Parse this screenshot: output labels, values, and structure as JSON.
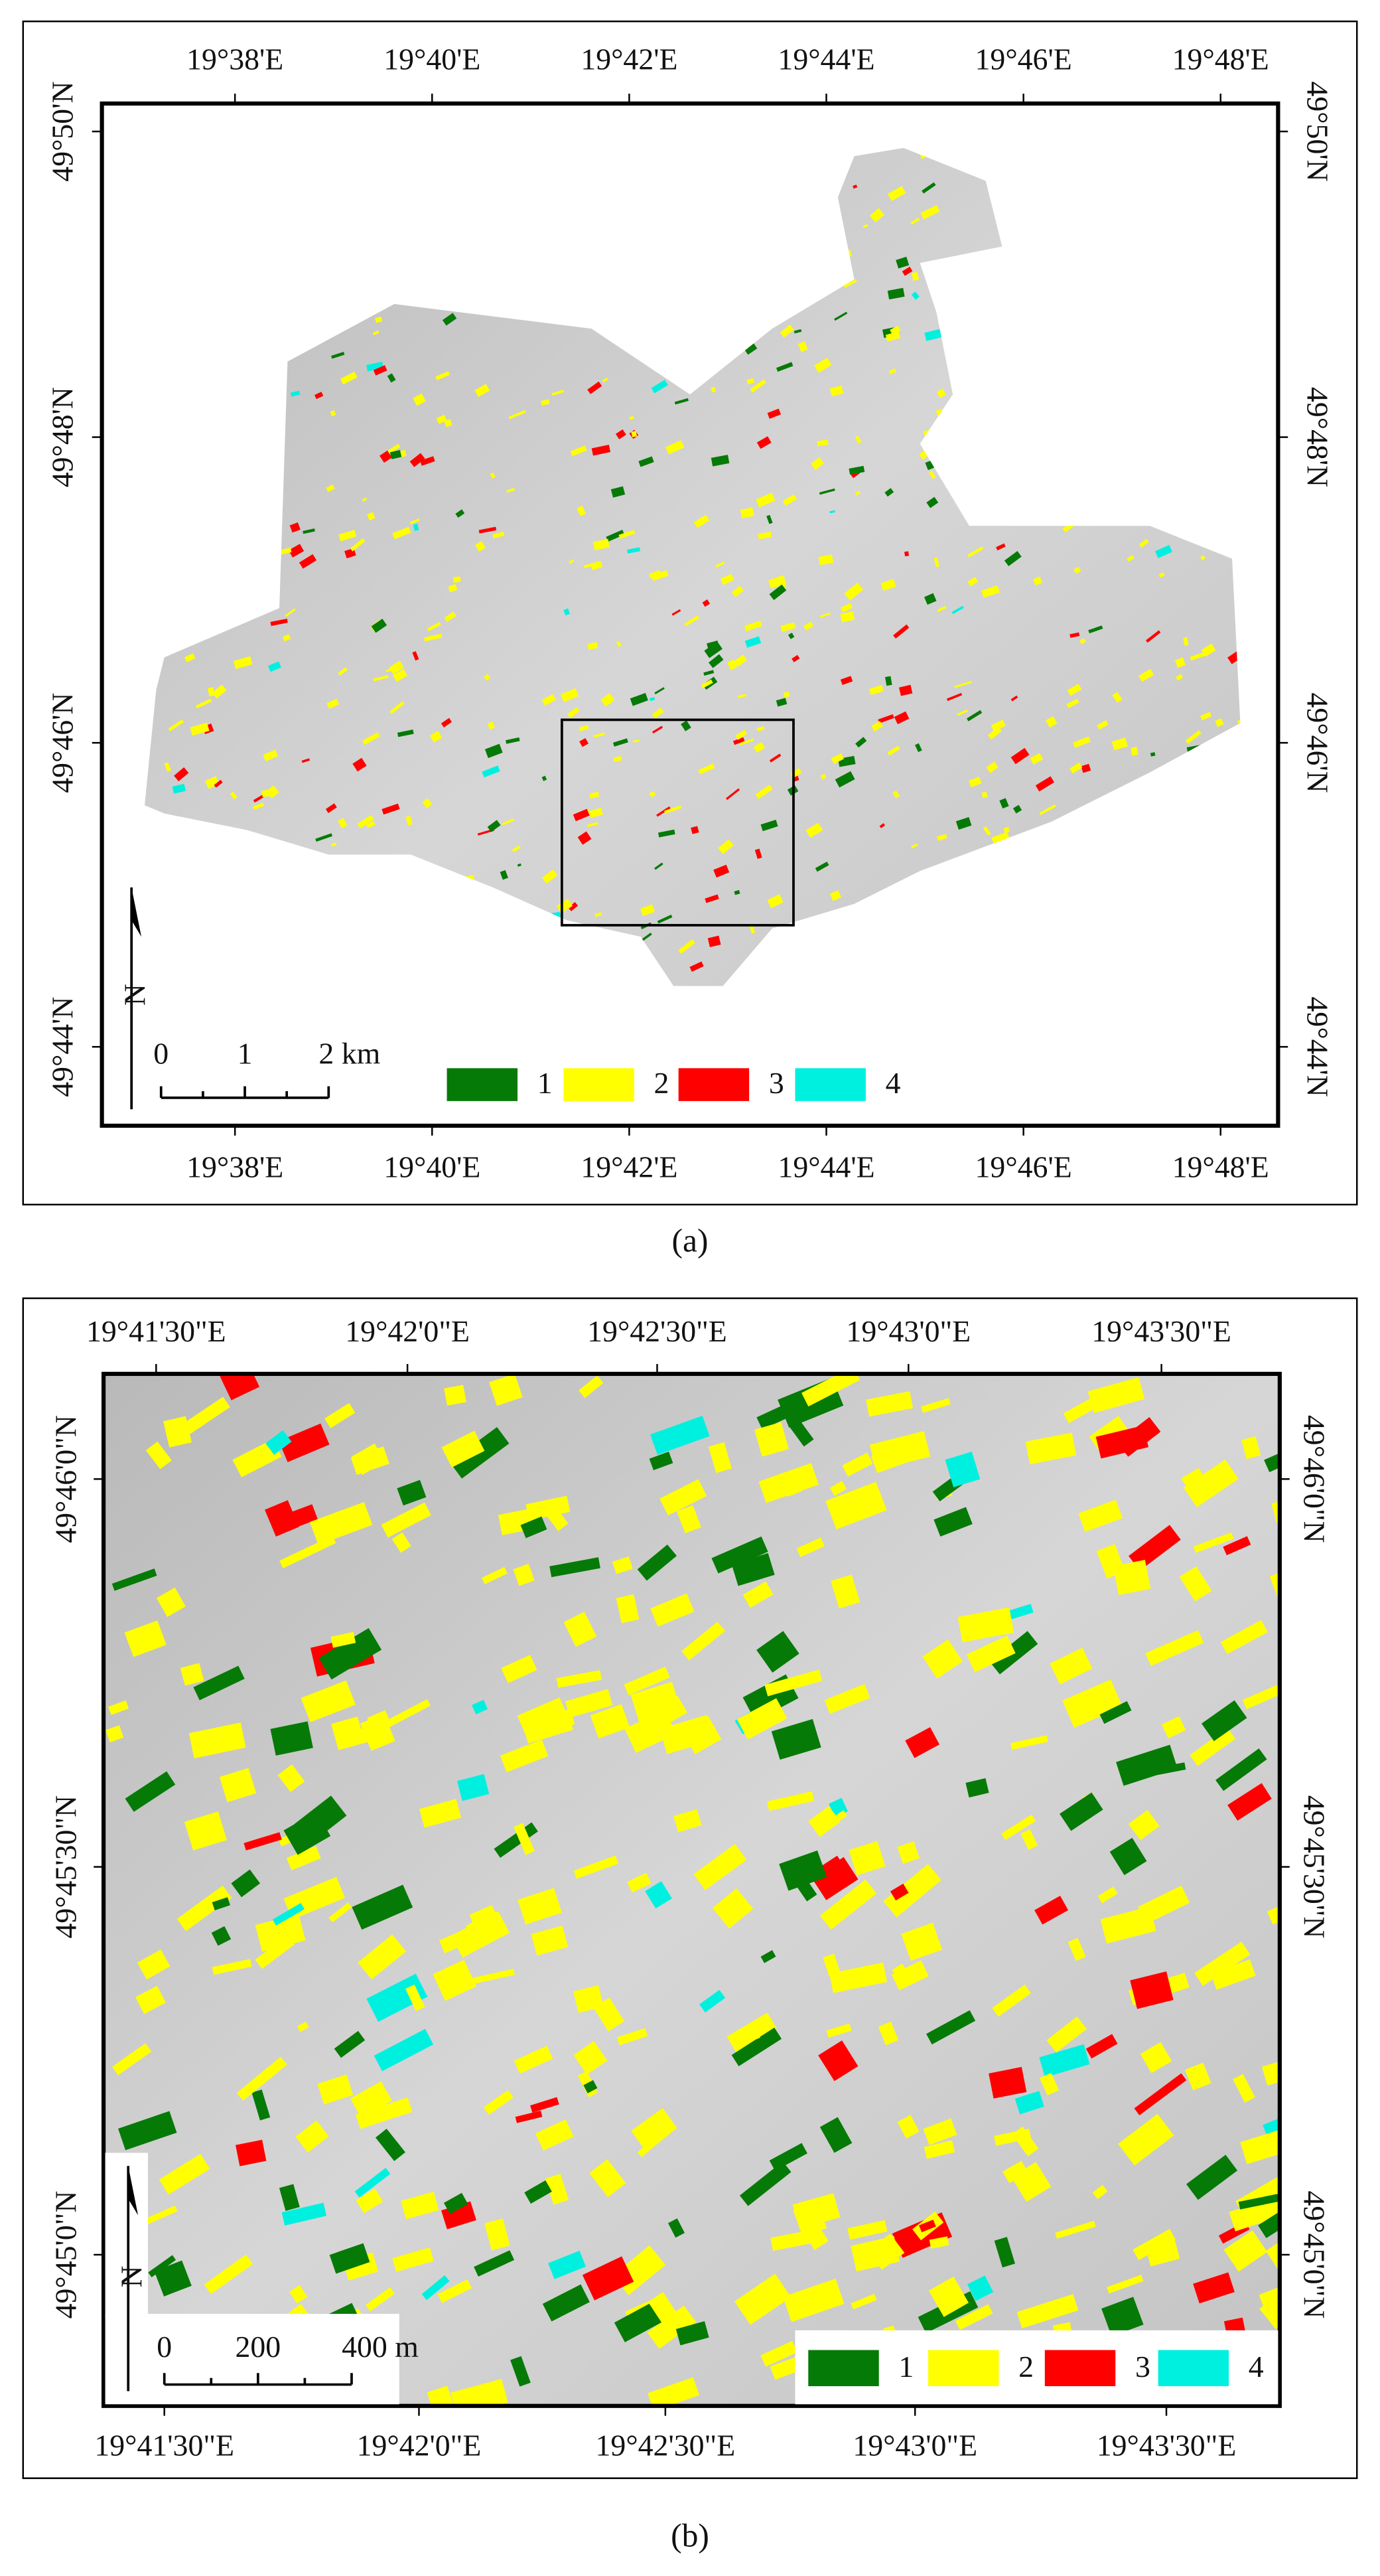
{
  "panels": [
    {
      "label": "(a)",
      "top_ticks": [
        "19°38'E",
        "19°40'E",
        "19°42'E",
        "19°44'E",
        "19°46'E",
        "19°48'E"
      ],
      "bottom_ticks": [
        "19°38'E",
        "19°40'E",
        "19°42'E",
        "19°44'E",
        "19°46'E",
        "19°48'E"
      ],
      "left_ticks": [
        "49°50'N",
        "49°48'N",
        "49°46'N",
        "49°44'N"
      ],
      "right_ticks": [
        "49°50'N",
        "49°48'N",
        "49°46'N",
        "49°44'N"
      ],
      "scale_bar": [
        "0",
        "1",
        "2 km"
      ],
      "legend": [
        {
          "label": "1",
          "color": "#067a06"
        },
        {
          "label": "2",
          "color": "#ffff00"
        },
        {
          "label": "3",
          "color": "#ff0000"
        },
        {
          "label": "4",
          "color": "#00f0e0"
        }
      ]
    },
    {
      "label": "(b)",
      "top_ticks": [
        "19°41'30\"E",
        "19°42'0\"E",
        "19°42'30\"E",
        "19°43'0\"E",
        "19°43'30\"E"
      ],
      "bottom_ticks": [
        "19°41'30\"E",
        "19°42'0\"E",
        "19°42'30\"E",
        "19°43'0\"E",
        "19°43'30\"E"
      ],
      "left_ticks": [
        "49°46'0\"N",
        "49°45'30\"N",
        "49°45'0\"N"
      ],
      "right_ticks": [
        "49°46'0\"N",
        "49°45'30\"N",
        "49°45'0\"N"
      ],
      "scale_bar": [
        "0",
        "200",
        "400 m"
      ],
      "legend": [
        {
          "label": "1",
          "color": "#067a06"
        },
        {
          "label": "2",
          "color": "#ffff00"
        },
        {
          "label": "3",
          "color": "#ff0000"
        },
        {
          "label": "4",
          "color": "#00f0e0"
        }
      ]
    }
  ]
}
